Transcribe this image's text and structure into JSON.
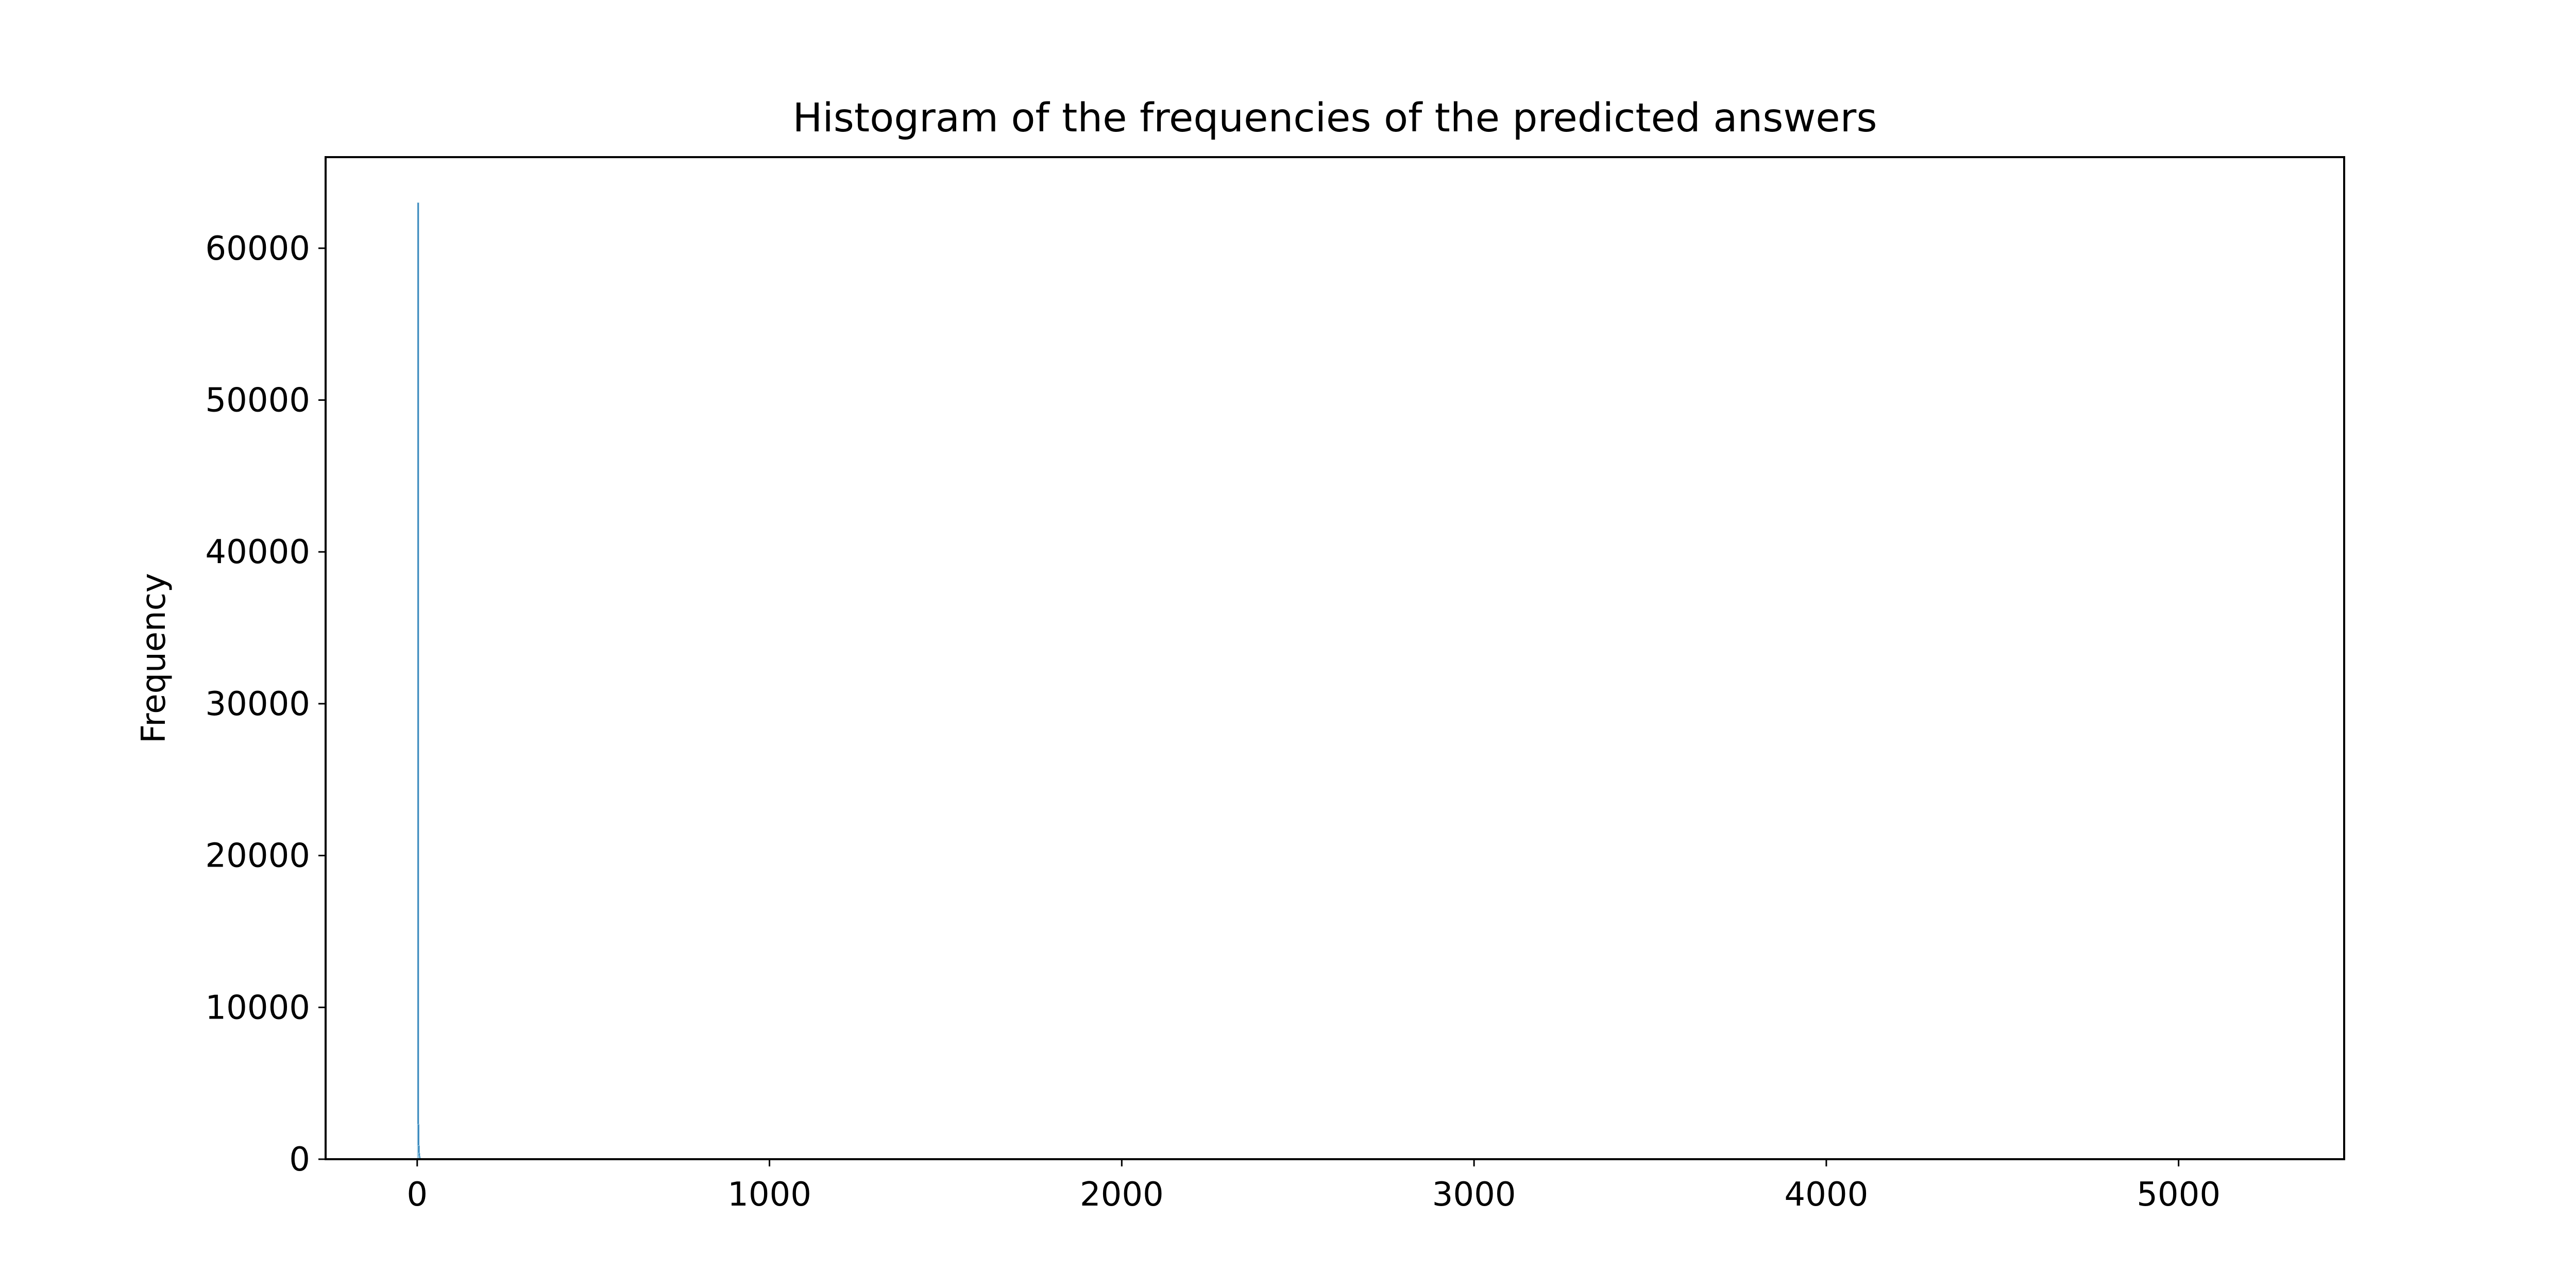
{
  "chart_data": {
    "type": "bar",
    "title": "Histogram of the frequencies of the predicted answers",
    "xlabel": "",
    "ylabel": "Frequency",
    "xlim": [
      -260,
      5470
    ],
    "ylim": [
      0,
      66000
    ],
    "x_ticks": [
      0,
      1000,
      2000,
      3000,
      4000,
      5000
    ],
    "y_ticks": [
      0,
      10000,
      20000,
      30000,
      40000,
      50000,
      60000
    ],
    "grid": false,
    "legend": "none",
    "colors": {
      "bar_fill": "#1f77b4",
      "bar_edge": "#9ecae1",
      "axes": "#000000",
      "background": "#ffffff"
    },
    "bins": [
      {
        "x": 1,
        "frequency": 63000
      },
      {
        "x": 2,
        "frequency": 2300
      },
      {
        "x": 3,
        "frequency": 900
      },
      {
        "x": 4,
        "frequency": 400
      },
      {
        "x": 5,
        "frequency": 200
      },
      {
        "x": 6,
        "frequency": 100
      }
    ]
  }
}
